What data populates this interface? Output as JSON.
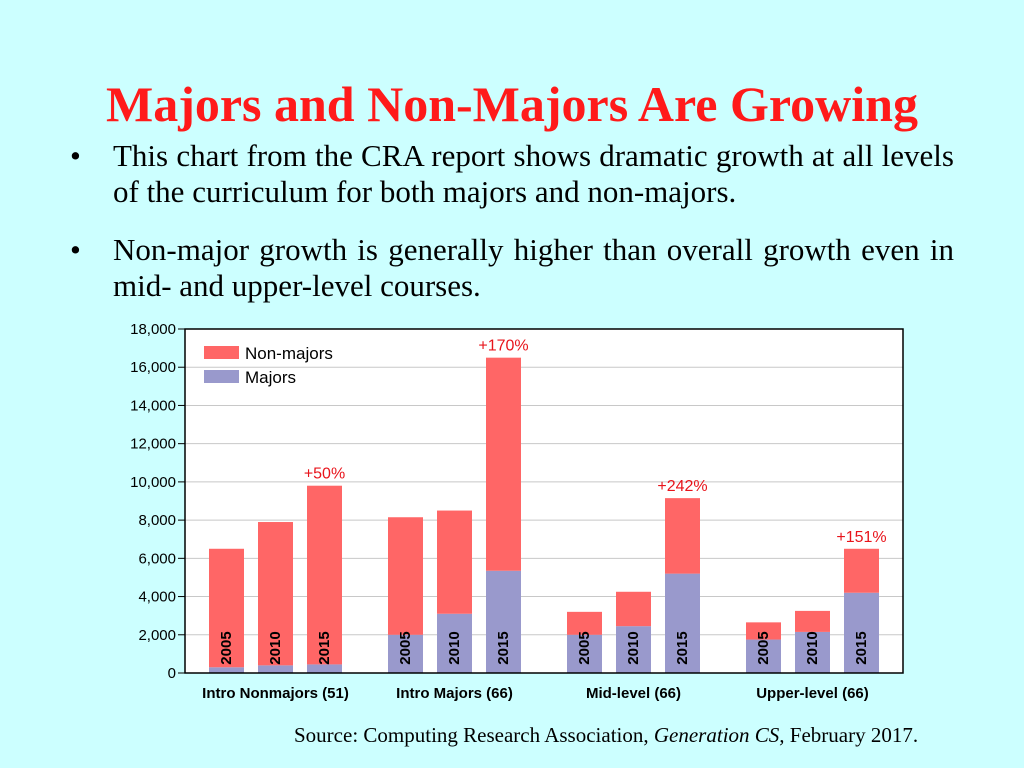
{
  "slide": {
    "title": "Majors and Non-Majors Are Growing",
    "bullets": [
      "This chart from the CRA report shows dramatic growth at all levels of the curriculum for both majors and non-majors.",
      "Non-major growth is generally higher than overall growth even in mid- and upper-level courses."
    ],
    "source": {
      "prefix": "Source: Computing Research Association, ",
      "publication": "Generation CS,",
      "suffix": " February 2017."
    }
  },
  "colors": {
    "background": "#ccffff",
    "title": "#ff1a1a",
    "non_majors": "#ff6666",
    "majors": "#9999cc",
    "annotation": "#e8141b"
  },
  "chart_data": {
    "type": "bar",
    "stacked": true,
    "title": "",
    "xlabel": "",
    "ylabel": "",
    "ylim": [
      0,
      18000
    ],
    "yticks": [
      0,
      2000,
      4000,
      6000,
      8000,
      10000,
      12000,
      14000,
      16000,
      18000
    ],
    "ytick_labels": [
      "0",
      "2,000",
      "4,000",
      "6,000",
      "8,000",
      "10,000",
      "12,000",
      "14,000",
      "16,000",
      "18,000"
    ],
    "grid": true,
    "legend": {
      "position": "top-left",
      "entries": [
        "Non-majors",
        "Majors"
      ]
    },
    "groups": [
      {
        "label": "Intro Nonmajors (51)",
        "years": [
          "2005",
          "2010",
          "2015"
        ],
        "majors": [
          300,
          400,
          450
        ],
        "non_majors": [
          6200,
          7500,
          9350
        ],
        "annotation": "+50%",
        "annotation_bar": 2
      },
      {
        "label": "Intro Majors (66)",
        "years": [
          "2005",
          "2010",
          "2015"
        ],
        "majors": [
          2000,
          3100,
          5350
        ],
        "non_majors": [
          6150,
          5400,
          11150
        ],
        "annotation": "+170%",
        "annotation_bar": 2
      },
      {
        "label": "Mid-level (66)",
        "years": [
          "2005",
          "2010",
          "2015"
        ],
        "majors": [
          2000,
          2450,
          5200
        ],
        "non_majors": [
          1200,
          1800,
          3950
        ],
        "annotation": "+242%",
        "annotation_bar": 2
      },
      {
        "label": "Upper-level (66)",
        "years": [
          "2005",
          "2010",
          "2015"
        ],
        "majors": [
          1750,
          2150,
          4200
        ],
        "non_majors": [
          900,
          1100,
          2300
        ],
        "annotation": "+151%",
        "annotation_bar": 2
      }
    ]
  }
}
